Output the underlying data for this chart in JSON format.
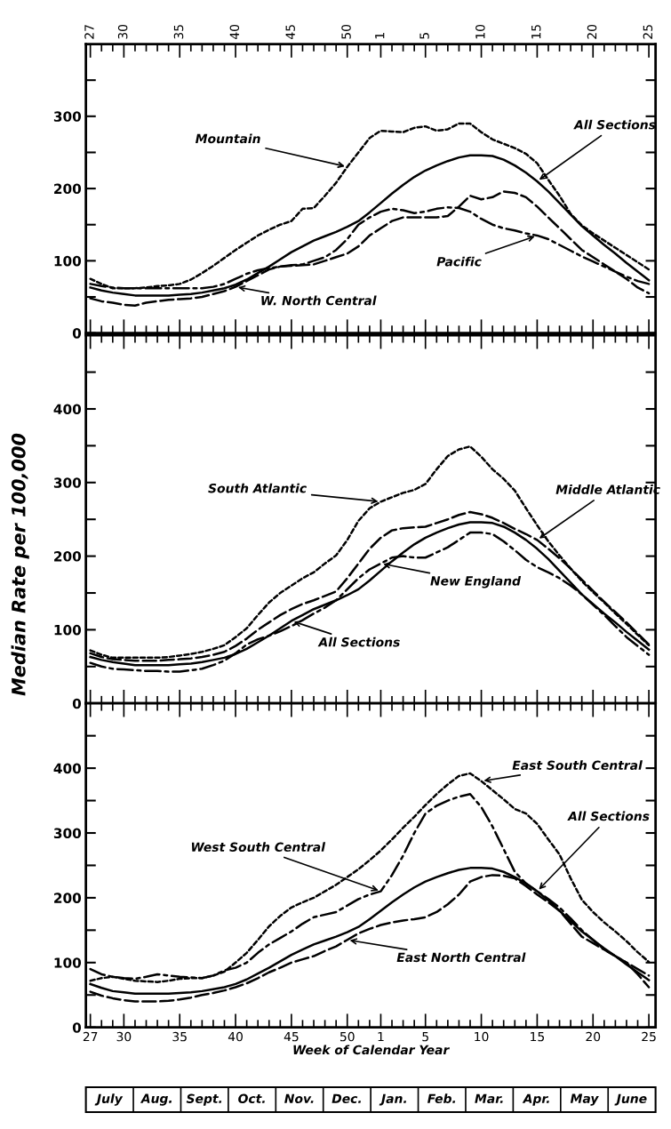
{
  "chart_data": [
    {
      "type": "line",
      "categories": [
        "27",
        null,
        null,
        "30",
        null,
        null,
        null,
        null,
        "35",
        null,
        null,
        null,
        null,
        "40",
        null,
        null,
        null,
        null,
        "45",
        null,
        null,
        null,
        null,
        "50",
        null,
        null,
        "1",
        null,
        null,
        null,
        "5",
        null,
        null,
        null,
        null,
        "10",
        null,
        null,
        null,
        null,
        "15",
        null,
        null,
        null,
        null,
        "20",
        null,
        null,
        null,
        null,
        "25"
      ],
      "series": [
        {
          "color": "#000000",
          "line_style": "solid",
          "values": [
            63,
            59,
            56,
            54,
            52,
            52,
            52,
            52,
            53,
            54,
            56,
            59,
            62,
            67,
            74,
            83,
            92,
            102,
            112,
            120,
            128,
            134,
            140,
            147,
            155,
            167,
            180,
            193,
            205,
            216,
            225,
            232,
            238,
            243,
            246,
            246,
            245,
            240,
            232,
            222,
            210,
            196,
            180,
            164,
            148,
            135,
            122,
            110,
            97,
            85,
            73
          ]
        },
        {
          "color": "#000000",
          "line_style": "dotted",
          "values": [
            75,
            68,
            62,
            62,
            62,
            63,
            65,
            66,
            68,
            74,
            83,
            93,
            104,
            115,
            125,
            135,
            143,
            150,
            155,
            172,
            173,
            190,
            208,
            230,
            250,
            270,
            280,
            279,
            278,
            284,
            286,
            280,
            282,
            290,
            290,
            278,
            268,
            262,
            256,
            248,
            235,
            212,
            190,
            165,
            149,
            138,
            128,
            118,
            108,
            98,
            88
          ]
        },
        {
          "color": "#000000",
          "line_style": "dashdot",
          "values": [
            68,
            65,
            63,
            62,
            62,
            62,
            62,
            62,
            62,
            62,
            62,
            64,
            68,
            75,
            82,
            87,
            90,
            92,
            94,
            95,
            100,
            105,
            115,
            130,
            150,
            160,
            168,
            172,
            170,
            166,
            168,
            172,
            174,
            173,
            168,
            158,
            150,
            145,
            142,
            138,
            135,
            130,
            122,
            114,
            106,
            99,
            92,
            85,
            78,
            72,
            68
          ]
        },
        {
          "color": "#000000",
          "line_style": "dashed",
          "values": [
            48,
            44,
            42,
            39,
            38,
            42,
            44,
            46,
            47,
            48,
            50,
            54,
            58,
            64,
            72,
            80,
            88,
            92,
            93,
            94,
            95,
            100,
            105,
            110,
            120,
            135,
            145,
            155,
            160,
            160,
            160,
            160,
            162,
            175,
            190,
            185,
            188,
            196,
            194,
            188,
            175,
            160,
            145,
            130,
            115,
            105,
            95,
            85,
            75,
            63,
            55
          ]
        }
      ],
      "ylim": [
        0,
        400
      ],
      "yticks": [
        0,
        {
          "value": 50,
          "label": null
        },
        100,
        {
          "value": 150,
          "label": null
        },
        200,
        {
          "value": 250,
          "label": null
        },
        300,
        {
          "value": 350,
          "label": null
        }
      ],
      "grid": false,
      "legend": false,
      "annotations": [
        {
          "text": "Mountain",
          "x": "50",
          "y": 230
        },
        {
          "text": "All Sections",
          "x": "15",
          "y": 210
        },
        {
          "text": "Pacific",
          "x": "15",
          "y": 135
        },
        {
          "text": "W. North Central",
          "x": "40",
          "y": 64
        }
      ]
    },
    {
      "type": "line",
      "categories": [
        "27",
        null,
        null,
        "30",
        null,
        null,
        null,
        null,
        "35",
        null,
        null,
        null,
        null,
        "40",
        null,
        null,
        null,
        null,
        "45",
        null,
        null,
        null,
        null,
        "50",
        null,
        null,
        "1",
        null,
        null,
        null,
        "5",
        null,
        null,
        null,
        null,
        "10",
        null,
        null,
        null,
        null,
        "15",
        null,
        null,
        null,
        null,
        "20",
        null,
        null,
        null,
        null,
        "25"
      ],
      "series": [
        {
          "color": "#000000",
          "line_style": "solid",
          "values": [
            63,
            59,
            56,
            54,
            52,
            52,
            52,
            52,
            53,
            54,
            56,
            59,
            62,
            67,
            74,
            83,
            92,
            102,
            112,
            120,
            128,
            134,
            140,
            147,
            155,
            167,
            180,
            193,
            205,
            216,
            225,
            232,
            238,
            243,
            246,
            246,
            245,
            240,
            232,
            222,
            210,
            196,
            180,
            164,
            148,
            135,
            122,
            110,
            97,
            85,
            73
          ]
        },
        {
          "color": "#000000",
          "line_style": "dotted",
          "values": [
            72,
            66,
            62,
            62,
            62,
            62,
            62,
            63,
            65,
            67,
            70,
            74,
            79,
            90,
            102,
            120,
            137,
            150,
            160,
            170,
            178,
            190,
            201,
            222,
            248,
            265,
            274,
            280,
            286,
            290,
            298,
            318,
            336,
            345,
            349,
            335,
            318,
            305,
            289,
            265,
            242,
            220,
            201,
            183,
            166,
            151,
            137,
            122,
            108,
            93,
            79
          ]
        },
        {
          "color": "#000000",
          "line_style": "dashed",
          "values": [
            68,
            63,
            60,
            59,
            58,
            58,
            58,
            59,
            60,
            61,
            63,
            66,
            70,
            78,
            88,
            100,
            110,
            120,
            128,
            135,
            140,
            146,
            152,
            170,
            190,
            210,
            225,
            235,
            238,
            239,
            240,
            245,
            250,
            256,
            260,
            257,
            252,
            245,
            237,
            230,
            222,
            210,
            197,
            183,
            168,
            153,
            138,
            124,
            110,
            95,
            80
          ]
        },
        {
          "color": "#000000",
          "line_style": "dashdot",
          "values": [
            55,
            50,
            47,
            46,
            45,
            44,
            44,
            43,
            43,
            45,
            47,
            52,
            58,
            68,
            80,
            87,
            92,
            98,
            105,
            113,
            122,
            130,
            140,
            155,
            170,
            182,
            190,
            198,
            200,
            198,
            198,
            205,
            212,
            222,
            232,
            232,
            230,
            220,
            208,
            195,
            185,
            178,
            170,
            160,
            148,
            134,
            120,
            105,
            90,
            78,
            66
          ]
        }
      ],
      "ylim": [
        0,
        500
      ],
      "yticks": [
        0,
        {
          "value": 50,
          "label": null
        },
        100,
        {
          "value": 150,
          "label": null
        },
        200,
        {
          "value": 250,
          "label": null
        },
        300,
        {
          "value": 350,
          "label": null
        },
        400,
        {
          "value": 450,
          "label": null
        }
      ],
      "tick_labels": "y",
      "grid": false,
      "legend": false,
      "ylabel": "Median Rate per 100,000",
      "annotations": [
        {
          "text": "South Atlantic",
          "x": "1",
          "y": 274
        },
        {
          "text": "Middle Atlantic",
          "x": "15",
          "y": 222
        },
        {
          "text": "New England",
          "x": "1",
          "y": 190
        },
        {
          "text": "All Sections",
          "x": "45",
          "y": 112
        }
      ]
    },
    {
      "type": "line",
      "categories": [
        "27",
        null,
        null,
        "30",
        null,
        null,
        null,
        null,
        "35",
        null,
        null,
        null,
        null,
        "40",
        null,
        null,
        null,
        null,
        "45",
        null,
        null,
        null,
        null,
        "50",
        null,
        null,
        "1",
        null,
        null,
        null,
        "5",
        null,
        null,
        null,
        null,
        "10",
        null,
        null,
        null,
        null,
        "15",
        null,
        null,
        null,
        null,
        "20",
        null,
        null,
        null,
        null,
        "25"
      ],
      "series": [
        {
          "color": "#000000",
          "line_style": "solid",
          "values": [
            67,
            61,
            56,
            54,
            52,
            52,
            52,
            52,
            53,
            54,
            56,
            59,
            62,
            67,
            74,
            83,
            92,
            102,
            112,
            120,
            128,
            134,
            140,
            147,
            155,
            167,
            180,
            193,
            205,
            216,
            225,
            232,
            238,
            243,
            246,
            246,
            245,
            240,
            232,
            222,
            210,
            196,
            180,
            164,
            148,
            135,
            122,
            110,
            97,
            85,
            73
          ]
        },
        {
          "color": "#000000",
          "line_style": "dotted",
          "values": [
            72,
            76,
            78,
            75,
            72,
            71,
            70,
            72,
            75,
            76,
            76,
            80,
            86,
            100,
            115,
            135,
            156,
            172,
            185,
            193,
            200,
            210,
            220,
            232,
            244,
            258,
            273,
            290,
            308,
            325,
            343,
            360,
            375,
            388,
            392,
            380,
            366,
            352,
            337,
            330,
            314,
            290,
            267,
            230,
            197,
            178,
            162,
            148,
            133,
            116,
            101
          ]
        },
        {
          "color": "#000000",
          "line_style": "dashdot",
          "values": [
            90,
            82,
            78,
            76,
            75,
            78,
            82,
            80,
            78,
            77,
            76,
            80,
            88,
            92,
            100,
            115,
            128,
            138,
            148,
            160,
            170,
            174,
            178,
            188,
            198,
            205,
            210,
            235,
            265,
            300,
            330,
            342,
            350,
            356,
            360,
            340,
            310,
            275,
            240,
            222,
            210,
            198,
            185,
            168,
            150,
            135,
            120,
            110,
            100,
            90,
            80
          ]
        },
        {
          "color": "#000000",
          "line_style": "dashed",
          "values": [
            55,
            49,
            45,
            42,
            40,
            40,
            40,
            41,
            43,
            46,
            50,
            53,
            57,
            62,
            68,
            76,
            85,
            92,
            100,
            105,
            110,
            118,
            125,
            135,
            145,
            152,
            158,
            162,
            165,
            167,
            170,
            178,
            190,
            205,
            225,
            232,
            235,
            234,
            230,
            218,
            205,
            193,
            180,
            160,
            140,
            130,
            120,
            110,
            100,
            82,
            62
          ]
        }
      ],
      "ylim": [
        0,
        500
      ],
      "yticks": [
        0,
        {
          "value": 50,
          "label": null
        },
        100,
        {
          "value": 150,
          "label": null
        },
        200,
        {
          "value": 250,
          "label": null
        },
        300,
        {
          "value": 350,
          "label": null
        },
        400,
        {
          "value": 450,
          "label": null
        }
      ],
      "grid": false,
      "legend": false,
      "xlabel": "Week of Calendar Year",
      "annotations": [
        {
          "text": "East South Central",
          "x": "10",
          "y": 380
        },
        {
          "text": "West South Central",
          "x": "1",
          "y": 210
        },
        {
          "text": "All Sections",
          "x": "15",
          "y": 210
        },
        {
          "text": "East North Central",
          "x": "50",
          "y": 135
        },
        "July",
        "Aug.",
        "Sept.",
        "Oct.",
        "Nov.",
        "Dec.",
        "Jan.",
        "Feb.",
        "Mar.",
        "Apr.",
        "May",
        "June"
      ]
    }
  ]
}
